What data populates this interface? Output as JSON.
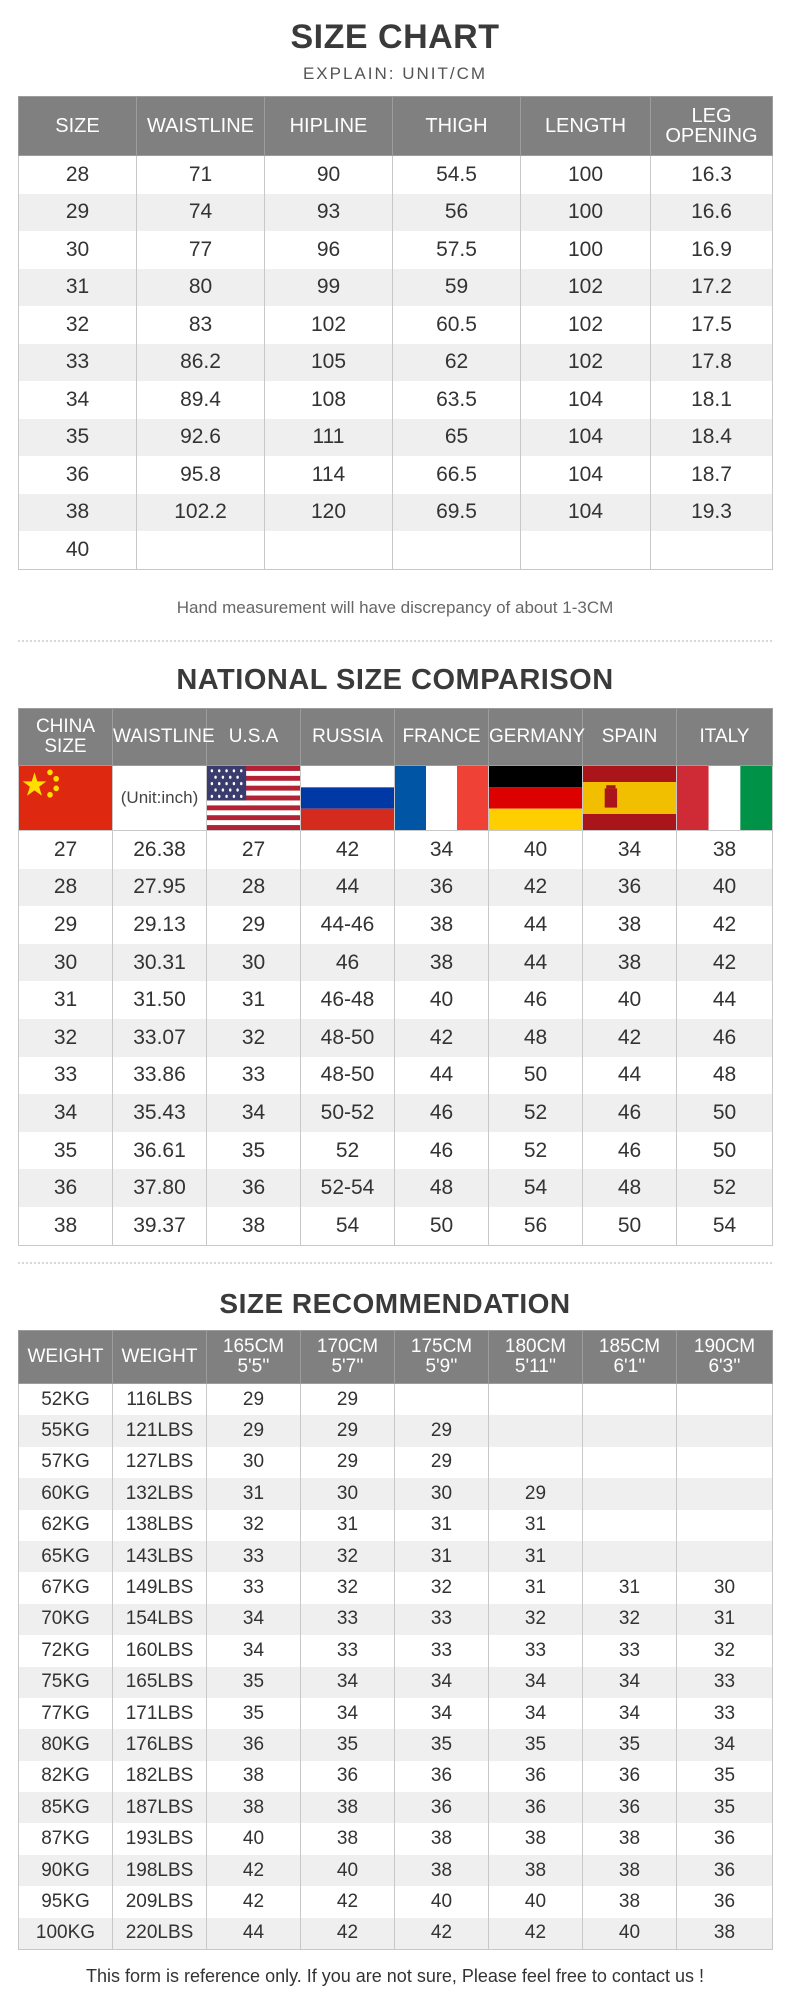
{
  "size_chart": {
    "title": "SIZE CHART",
    "subtitle": "EXPLAIN: UNIT/CM",
    "headers": [
      "SIZE",
      "WAISTLINE",
      "HIPLINE",
      "THIGH",
      "LENGTH",
      "LEG OPENING"
    ],
    "rows": [
      [
        "28",
        "71",
        "90",
        "54.5",
        "100",
        "16.3"
      ],
      [
        "29",
        "74",
        "93",
        "56",
        "100",
        "16.6"
      ],
      [
        "30",
        "77",
        "96",
        "57.5",
        "100",
        "16.9"
      ],
      [
        "31",
        "80",
        "99",
        "59",
        "102",
        "17.2"
      ],
      [
        "32",
        "83",
        "102",
        "60.5",
        "102",
        "17.5"
      ],
      [
        "33",
        "86.2",
        "105",
        "62",
        "102",
        "17.8"
      ],
      [
        "34",
        "89.4",
        "108",
        "63.5",
        "104",
        "18.1"
      ],
      [
        "35",
        "92.6",
        "111",
        "65",
        "104",
        "18.4"
      ],
      [
        "36",
        "95.8",
        "114",
        "66.5",
        "104",
        "18.7"
      ],
      [
        "38",
        "102.2",
        "120",
        "69.5",
        "104",
        "19.3"
      ],
      [
        "40",
        "",
        "",
        "",
        "",
        ""
      ]
    ],
    "note": "Hand measurement will have discrepancy of about 1-3CM"
  },
  "national": {
    "title": "NATIONAL SIZE COMPARISON",
    "headers": [
      {
        "line1": "CHINA",
        "line2": "SIZE"
      },
      {
        "line1": "WAISTLINE",
        "line2": ""
      },
      {
        "line1": "U.S.A",
        "line2": ""
      },
      {
        "line1": "RUSSIA",
        "line2": ""
      },
      {
        "line1": "FRANCE",
        "line2": ""
      },
      {
        "line1": "GERMANY",
        "line2": ""
      },
      {
        "line1": "SPAIN",
        "line2": ""
      },
      {
        "line1": "ITALY",
        "line2": ""
      }
    ],
    "flags": [
      "china-flag",
      "unit",
      "usa-flag",
      "russia-flag",
      "france-flag",
      "germany-flag",
      "spain-flag",
      "italy-flag"
    ],
    "unit_label": "(Unit:inch)",
    "rows": [
      [
        "27",
        "26.38",
        "27",
        "42",
        "34",
        "40",
        "34",
        "38"
      ],
      [
        "28",
        "27.95",
        "28",
        "44",
        "36",
        "42",
        "36",
        "40"
      ],
      [
        "29",
        "29.13",
        "29",
        "44-46",
        "38",
        "44",
        "38",
        "42"
      ],
      [
        "30",
        "30.31",
        "30",
        "46",
        "38",
        "44",
        "38",
        "42"
      ],
      [
        "31",
        "31.50",
        "31",
        "46-48",
        "40",
        "46",
        "40",
        "44"
      ],
      [
        "32",
        "33.07",
        "32",
        "48-50",
        "42",
        "48",
        "42",
        "46"
      ],
      [
        "33",
        "33.86",
        "33",
        "48-50",
        "44",
        "50",
        "44",
        "48"
      ],
      [
        "34",
        "35.43",
        "34",
        "50-52",
        "46",
        "52",
        "46",
        "50"
      ],
      [
        "35",
        "36.61",
        "35",
        "52",
        "46",
        "52",
        "46",
        "50"
      ],
      [
        "36",
        "37.80",
        "36",
        "52-54",
        "48",
        "54",
        "48",
        "52"
      ],
      [
        "38",
        "39.37",
        "38",
        "54",
        "50",
        "56",
        "50",
        "54"
      ]
    ],
    "colors": {
      "china_red": "#de2910",
      "china_yellow": "#ffde00"
    }
  },
  "recommendation": {
    "title": "SIZE RECOMMENDATION",
    "headers": [
      {
        "line1": "WEIGHT",
        "line2": ""
      },
      {
        "line1": "WEIGHT",
        "line2": ""
      },
      {
        "line1": "165CM",
        "line2": "5'5''"
      },
      {
        "line1": "170CM",
        "line2": "5'7''"
      },
      {
        "line1": "175CM",
        "line2": "5'9''"
      },
      {
        "line1": "180CM",
        "line2": "5'11''"
      },
      {
        "line1": "185CM",
        "line2": "6'1''"
      },
      {
        "line1": "190CM",
        "line2": "6'3''"
      }
    ],
    "rows": [
      [
        "52KG",
        "116LBS",
        "29",
        "29",
        "",
        "",
        "",
        ""
      ],
      [
        "55KG",
        "121LBS",
        "29",
        "29",
        "29",
        "",
        "",
        ""
      ],
      [
        "57KG",
        "127LBS",
        "30",
        "29",
        "29",
        "",
        "",
        ""
      ],
      [
        "60KG",
        "132LBS",
        "31",
        "30",
        "30",
        "29",
        "",
        ""
      ],
      [
        "62KG",
        "138LBS",
        "32",
        "31",
        "31",
        "31",
        "",
        ""
      ],
      [
        "65KG",
        "143LBS",
        "33",
        "32",
        "31",
        "31",
        "",
        ""
      ],
      [
        "67KG",
        "149LBS",
        "33",
        "32",
        "32",
        "31",
        "31",
        "30"
      ],
      [
        "70KG",
        "154LBS",
        "34",
        "33",
        "33",
        "32",
        "32",
        "31"
      ],
      [
        "72KG",
        "160LBS",
        "34",
        "33",
        "33",
        "33",
        "33",
        "32"
      ],
      [
        "75KG",
        "165LBS",
        "35",
        "34",
        "34",
        "34",
        "34",
        "33"
      ],
      [
        "77KG",
        "171LBS",
        "35",
        "34",
        "34",
        "34",
        "34",
        "33"
      ],
      [
        "80KG",
        "176LBS",
        "36",
        "35",
        "35",
        "35",
        "35",
        "34"
      ],
      [
        "82KG",
        "182LBS",
        "38",
        "36",
        "36",
        "36",
        "36",
        "35"
      ],
      [
        "85KG",
        "187LBS",
        "38",
        "38",
        "36",
        "36",
        "36",
        "35"
      ],
      [
        "87KG",
        "193LBS",
        "40",
        "38",
        "38",
        "38",
        "38",
        "36"
      ],
      [
        "90KG",
        "198LBS",
        "42",
        "40",
        "38",
        "38",
        "38",
        "36"
      ],
      [
        "95KG",
        "209LBS",
        "42",
        "42",
        "40",
        "40",
        "38",
        "36"
      ],
      [
        "100KG",
        "220LBS",
        "44",
        "42",
        "42",
        "42",
        "40",
        "38"
      ]
    ]
  },
  "footer": "This form is reference only. If you are not sure, Please feel free to contact us !"
}
